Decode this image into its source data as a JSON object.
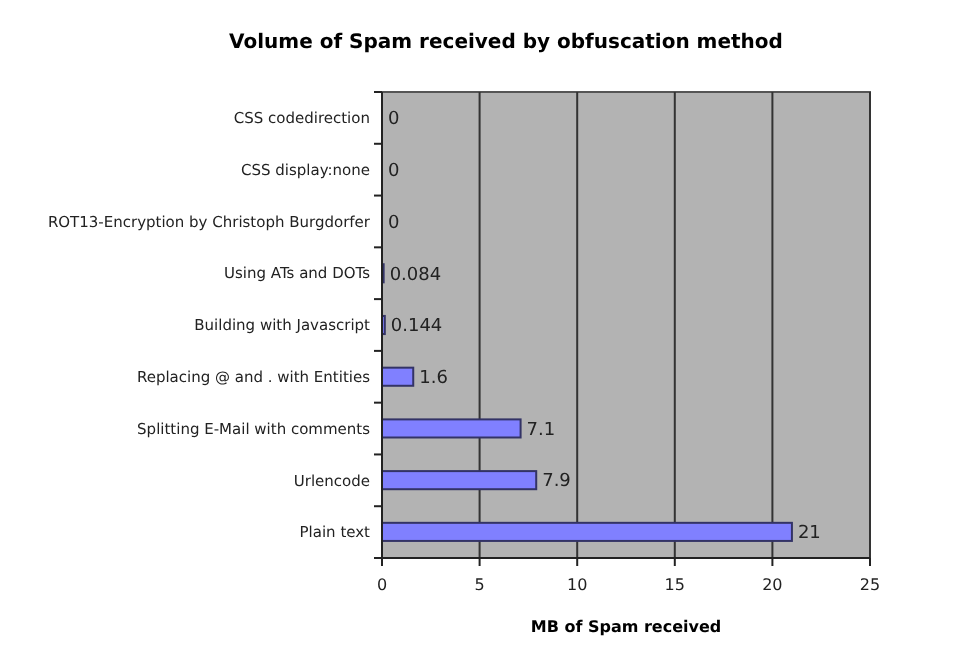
{
  "chart_data": {
    "type": "bar",
    "orientation": "horizontal",
    "title": "Volume of Spam received by obfuscation method",
    "xlabel": "MB of Spam received",
    "categories": [
      "CSS codedirection",
      "CSS display:none",
      "ROT13-Encryption by Christoph Burgdorfer",
      "Using ATs and DOTs",
      "Building with Javascript",
      "Replacing @ and . with Entities",
      "Splitting E-Mail with comments",
      "Urlencode",
      "Plain text"
    ],
    "values": [
      0,
      0,
      0,
      0.084,
      0.144,
      1.6,
      7.1,
      7.9,
      21
    ],
    "color": "#8080ff",
    "data_labels": true,
    "xlim": [
      0,
      25
    ],
    "xticks": [
      0,
      5,
      10,
      15,
      20,
      25
    ],
    "grid": "x"
  }
}
